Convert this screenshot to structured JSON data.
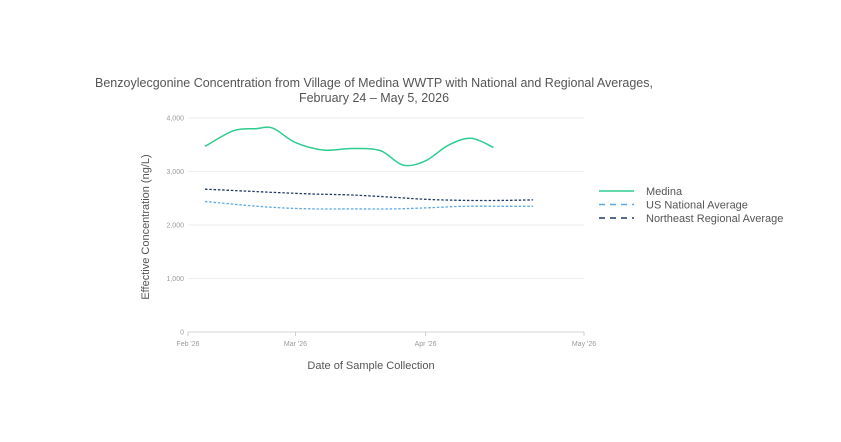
{
  "chart_data": {
    "type": "line",
    "title_lines": [
      "Benzoylecgonine Concentration from Village of Medina WWTP with National and Regional Averages,",
      "February 24 – May 5, 2026"
    ],
    "xlabel": "Date of Sample Collection",
    "ylabel": "Effective Concentration (ng/L)",
    "xlim": [
      "2026-02-24",
      "2026-05-05"
    ],
    "ylim": [
      0,
      4000
    ],
    "x_ticks": [
      "2026-02-24",
      "2026-03-15",
      "2026-04-07",
      "2026-05-05"
    ],
    "x_tick_labels": [
      "Feb '26",
      "Mar '26",
      "Apr '26",
      "May '26"
    ],
    "y_ticks": [
      0,
      1000,
      2000,
      3000,
      4000
    ],
    "y_tick_labels": [
      "0",
      "1,000",
      "2,000",
      "3,000",
      "4,000"
    ],
    "grid": "horizontal",
    "legend_position": "right",
    "series": [
      {
        "name": "Medina",
        "color": "#2ecc8f",
        "style": "solid",
        "x": [
          "2026-02-27",
          "2026-03-04",
          "2026-03-08",
          "2026-03-11",
          "2026-03-15",
          "2026-03-20",
          "2026-03-25",
          "2026-03-30",
          "2026-04-03",
          "2026-04-07",
          "2026-04-11",
          "2026-04-15",
          "2026-04-19"
        ],
        "y": [
          3470,
          3760,
          3800,
          3810,
          3540,
          3400,
          3430,
          3390,
          3120,
          3200,
          3490,
          3620,
          3450
        ]
      },
      {
        "name": "US National Average",
        "color": "#5aa9e6",
        "style": "dashed",
        "x": [
          "2026-02-27",
          "2026-03-05",
          "2026-03-11",
          "2026-03-18",
          "2026-03-25",
          "2026-04-01",
          "2026-04-07",
          "2026-04-14",
          "2026-04-21",
          "2026-04-26"
        ],
        "y": [
          2440,
          2380,
          2330,
          2300,
          2300,
          2300,
          2320,
          2350,
          2350,
          2350
        ]
      },
      {
        "name": "Northeast Regional Average",
        "color": "#1f3b63",
        "style": "dashed",
        "x": [
          "2026-02-27",
          "2026-03-05",
          "2026-03-11",
          "2026-03-18",
          "2026-03-25",
          "2026-04-01",
          "2026-04-07",
          "2026-04-14",
          "2026-04-21",
          "2026-04-26"
        ],
        "y": [
          2670,
          2640,
          2610,
          2580,
          2560,
          2520,
          2480,
          2460,
          2460,
          2470
        ]
      }
    ]
  }
}
